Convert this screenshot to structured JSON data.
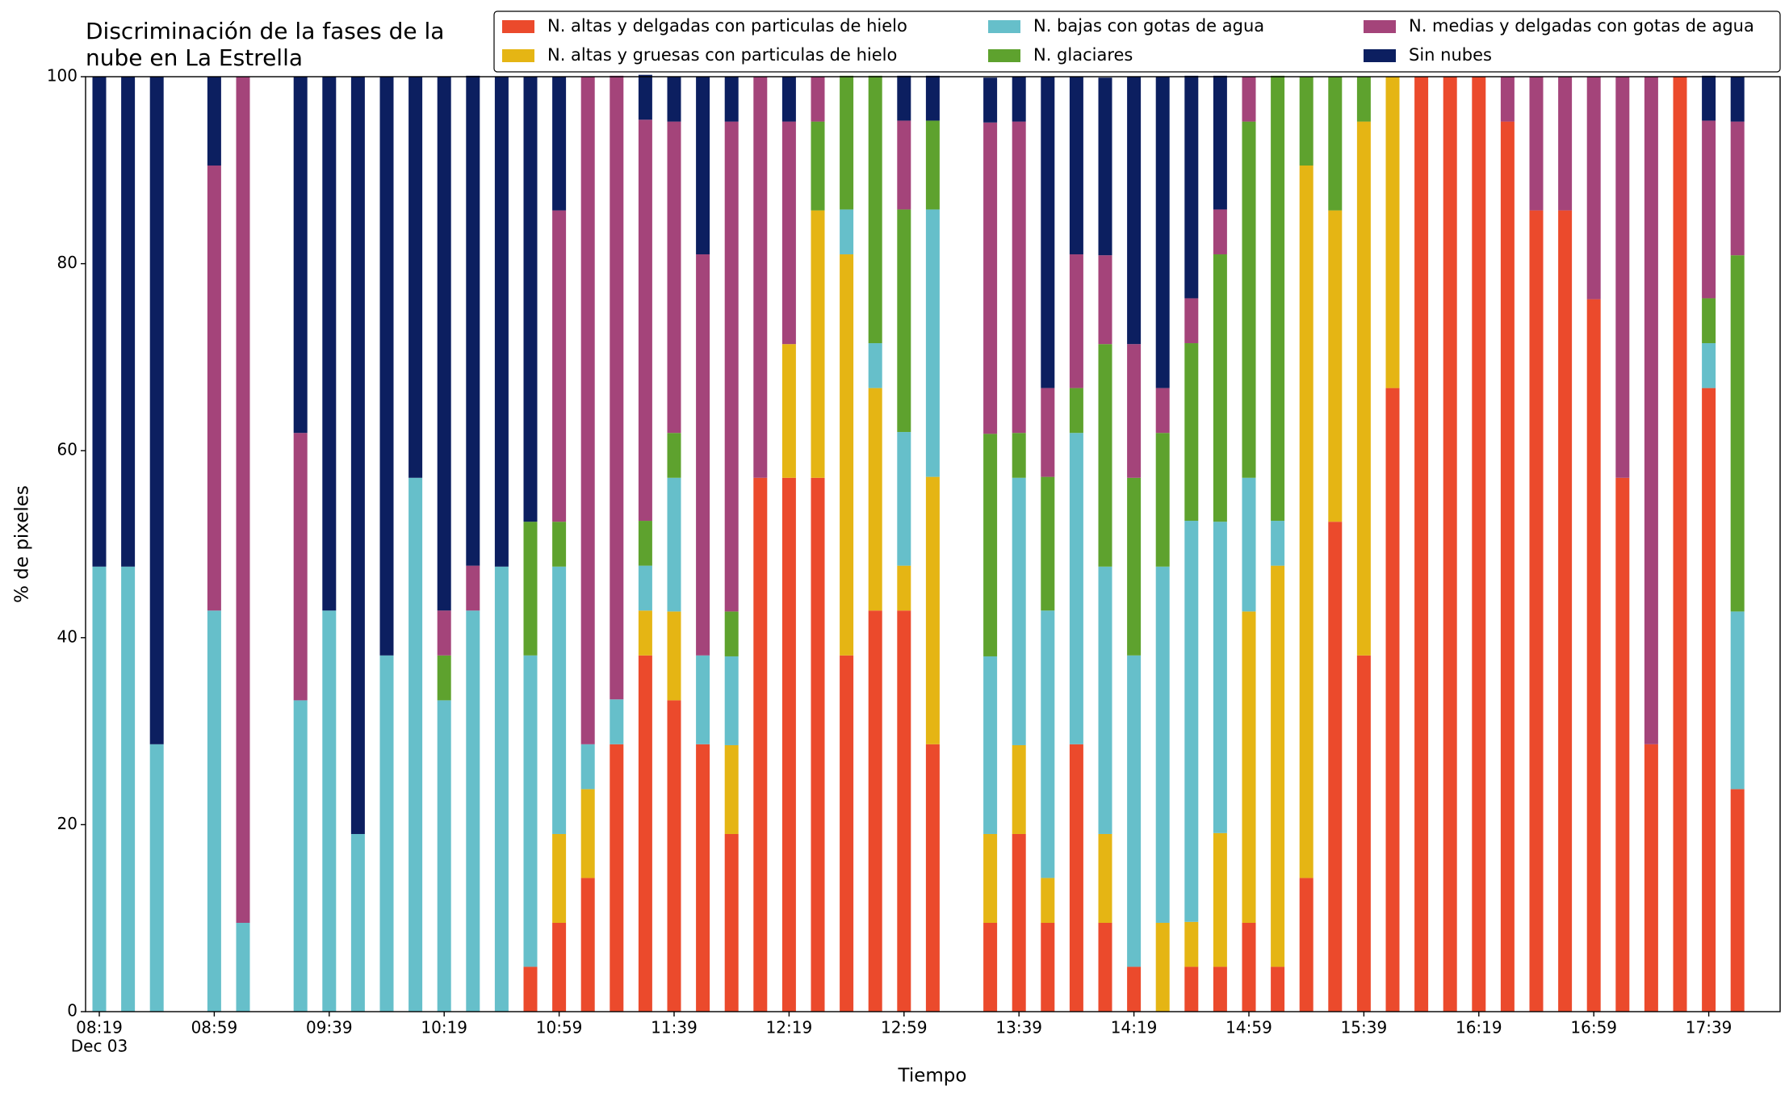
{
  "chart_data": {
    "type": "stacked_bar",
    "title": [
      "Discriminación de la fases de la",
      "nube en La Estrella"
    ],
    "xlabel": "Tiempo",
    "ylabel": "% de pixeles",
    "x_sublabel": "Dec 03",
    "categories": [
      "08:19",
      null,
      null,
      null,
      "08:59",
      null,
      null,
      null,
      "09:39",
      null,
      null,
      null,
      "10:19",
      null,
      null,
      null,
      "10:59",
      null,
      null,
      null,
      "11:39",
      null,
      null,
      null,
      "12:19",
      null,
      null,
      null,
      "12:59",
      null,
      null,
      null,
      "13:39",
      null,
      null,
      null,
      "14:19",
      null,
      null,
      null,
      "14:59",
      null,
      null,
      null,
      "15:39",
      null,
      null,
      null,
      "16:19",
      null,
      null,
      null,
      "16:59",
      null,
      null,
      null,
      "17:39",
      null
    ],
    "ylim": [
      0,
      100
    ],
    "yticks": [
      0,
      20,
      40,
      60,
      80,
      100
    ],
    "grid": false,
    "series": [
      {
        "name": "N. altas y delgadas con particulas de hielo",
        "color": "#eb4a2c",
        "values": [
          0,
          0,
          0,
          0,
          0,
          0,
          0,
          0,
          0,
          0,
          0,
          0,
          0,
          0,
          0,
          4.8,
          9.5,
          14.3,
          28.6,
          38.1,
          33.3,
          28.6,
          19,
          57.1,
          57.1,
          57.1,
          38.1,
          42.9,
          42.9,
          28.6,
          0,
          9.5,
          19,
          9.5,
          28.6,
          9.5,
          4.8,
          0,
          4.8,
          4.8,
          9.5,
          4.8,
          14.3,
          52.4,
          38.1,
          66.7,
          100,
          100,
          100,
          95.2,
          85.7,
          85.7,
          76.2,
          57.1,
          28.6,
          100,
          66.7,
          23.8
        ]
      },
      {
        "name": "N. altas y gruesas con particulas de hielo",
        "color": "#e5b514",
        "values": [
          0,
          0,
          0,
          0,
          0,
          0,
          0,
          0,
          0,
          0,
          0,
          0,
          0,
          0,
          0,
          0,
          9.5,
          9.5,
          0,
          4.8,
          9.5,
          0,
          9.5,
          0,
          14.3,
          28.6,
          42.9,
          23.8,
          4.8,
          28.6,
          0,
          9.5,
          9.5,
          4.8,
          0,
          9.5,
          0,
          9.5,
          4.8,
          14.3,
          33.3,
          42.9,
          76.2,
          33.3,
          57.1,
          33.3,
          0,
          0,
          0,
          0,
          0,
          0,
          0,
          0,
          0,
          0,
          0,
          0
        ]
      },
      {
        "name": "N. bajas con gotas de agua",
        "color": "#66bfca",
        "values": [
          47.6,
          47.6,
          28.6,
          0,
          42.9,
          9.5,
          0,
          33.3,
          42.9,
          19,
          38.1,
          57.1,
          33.3,
          42.9,
          47.6,
          33.3,
          28.6,
          4.8,
          4.8,
          4.8,
          14.3,
          9.5,
          9.5,
          0,
          0,
          0,
          4.8,
          4.8,
          14.3,
          28.6,
          0,
          19,
          28.6,
          28.6,
          33.3,
          28.6,
          33.3,
          38.1,
          42.9,
          33.3,
          14.3,
          4.8,
          0,
          0,
          0,
          0,
          0,
          0,
          0,
          0,
          0,
          0,
          0,
          0,
          0,
          0,
          4.8,
          19
        ]
      },
      {
        "name": "N. glaciares",
        "color": "#5ea22e",
        "values": [
          0,
          0,
          0,
          0,
          0,
          0,
          0,
          0,
          0,
          0,
          0,
          0,
          4.8,
          0,
          0,
          14.3,
          4.8,
          0,
          0,
          4.8,
          4.8,
          0,
          4.8,
          0,
          0,
          9.5,
          14.3,
          28.6,
          23.8,
          9.5,
          0,
          23.8,
          4.8,
          14.3,
          4.8,
          23.8,
          19,
          14.3,
          19,
          28.6,
          38.1,
          47.6,
          9.5,
          14.3,
          4.8,
          0,
          0,
          0,
          0,
          0,
          0,
          0,
          0,
          0,
          0,
          0,
          4.8,
          38.1
        ]
      },
      {
        "name": "N. medias y delgadas con gotas de agua",
        "color": "#a4447a",
        "values": [
          0,
          0,
          0,
          0,
          47.6,
          90.5,
          0,
          28.6,
          0,
          0,
          0,
          0,
          4.8,
          4.8,
          0,
          0,
          33.3,
          71.4,
          66.7,
          42.9,
          33.3,
          42.9,
          52.4,
          42.9,
          23.8,
          4.8,
          0,
          0,
          9.5,
          0,
          0,
          33.3,
          33.3,
          9.5,
          14.3,
          9.5,
          14.3,
          4.8,
          4.8,
          4.8,
          4.8,
          0,
          0,
          0,
          0,
          0,
          0,
          0,
          0,
          4.8,
          14.3,
          14.3,
          23.8,
          42.9,
          71.4,
          0,
          19,
          14.3
        ]
      },
      {
        "name": "Sin nubes",
        "color": "#0c1f60",
        "values": [
          52.4,
          52.4,
          71.4,
          0,
          9.5,
          0,
          0,
          38.1,
          57.1,
          81,
          61.9,
          42.9,
          57.1,
          52.4,
          52.4,
          47.6,
          14.3,
          0,
          0,
          4.8,
          4.8,
          19,
          4.8,
          0,
          4.8,
          0,
          0,
          0,
          4.8,
          4.8,
          0,
          4.8,
          4.8,
          33.3,
          19,
          19,
          28.6,
          33.3,
          23.8,
          14.3,
          0,
          0,
          0,
          0,
          0,
          0,
          0,
          0,
          0,
          0,
          0,
          0,
          0,
          0,
          0,
          0,
          4.8,
          4.8
        ]
      }
    ]
  }
}
